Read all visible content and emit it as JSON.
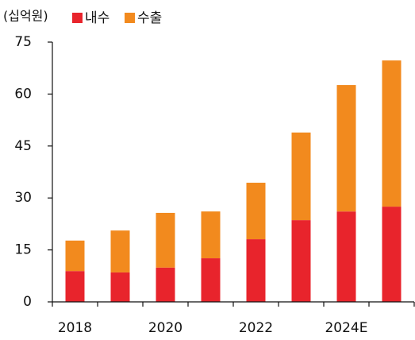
{
  "chart_data": {
    "type": "stacked_bar",
    "unit_label": "(십억원)",
    "categories": [
      "2018",
      null,
      "2020",
      null,
      "2022",
      null,
      "2024E",
      null
    ],
    "series": [
      {
        "name": "내수",
        "color": "#e8242c",
        "values": [
          8.9,
          8.5,
          9.9,
          12.6,
          18.1,
          23.6,
          26.1,
          27.5
        ]
      },
      {
        "name": "수출",
        "color": "#f28a1e",
        "values": [
          8.8,
          12.1,
          15.8,
          13.5,
          16.3,
          25.3,
          36.5,
          42.2
        ]
      }
    ],
    "ylim": [
      0,
      75
    ],
    "yticks": [
      0,
      15,
      30,
      45,
      60,
      75
    ],
    "grid": false
  }
}
